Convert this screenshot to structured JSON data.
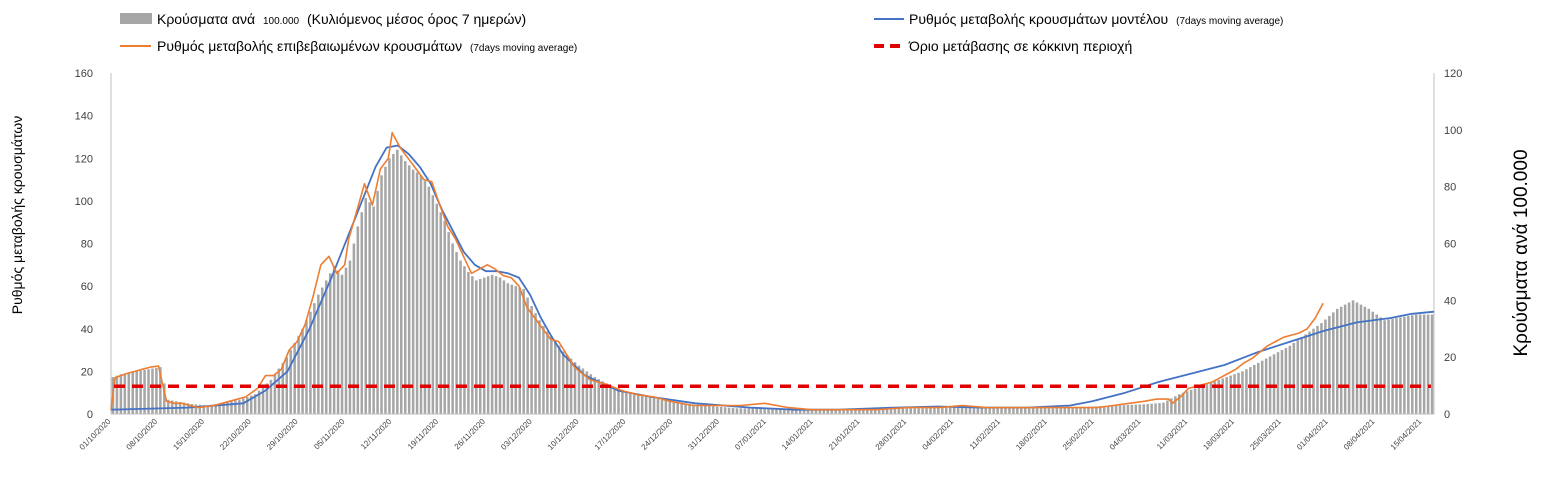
{
  "chart_data": {
    "type": "bar+line",
    "legend": {
      "placement": "top",
      "items": [
        {
          "key": "bars",
          "label_main": "Κρούσματα ανά",
          "label_small": "100.000",
          "label_rest": "(Κυλιόμενος μέσος όρος 7 ημερών)"
        },
        {
          "key": "model",
          "label_main": "Ρυθμός μεταβολής κρουσμάτων μοντέλου",
          "label_small": "(7days moving average)"
        },
        {
          "key": "confirmed",
          "label_main": "Ρυθμός μεταβολής επιβεβαιωμένων κρουσμάτων",
          "label_small": "(7days moving average)"
        },
        {
          "key": "threshold",
          "label_main": "Όριο μετάβασης σε κόκκινη περιοχή"
        }
      ]
    },
    "y_left_label": "Ρυθμός μεταβολής κρουσμάτων",
    "y_right_label": "Κρούσματα ανά 100.000",
    "y_left_range": [
      0,
      160
    ],
    "y_right_range": [
      0,
      120
    ],
    "y_left_ticks": [
      "0",
      "20",
      "40",
      "60",
      "80",
      "100",
      "120",
      "140",
      "160"
    ],
    "y_right_ticks": [
      "0",
      "20",
      "40",
      "60",
      "80",
      "100",
      "120"
    ],
    "x_ticks": [
      "01/10/2020",
      "08/10/2020",
      "15/10/2020",
      "22/10/2020",
      "29/10/2020",
      "05/11/2020",
      "12/11/2020",
      "19/11/2020",
      "26/11/2020",
      "03/12/2020",
      "10/12/2020",
      "17/12/2020",
      "24/12/2020",
      "31/12/2020",
      "07/01/2021",
      "14/01/2021",
      "21/01/2021",
      "28/01/2021",
      "04/02/2021",
      "11/02/2021",
      "18/02/2021",
      "25/02/2021",
      "04/03/2021",
      "11/03/2021",
      "18/03/2021",
      "25/03/2021",
      "01/04/2021",
      "08/04/2021",
      "15/04/2021"
    ],
    "grid": false,
    "threshold_left_value": 13,
    "colors": {
      "bars": "#a6a6a6",
      "model": "#4472c4",
      "confirmed": "#ed7d31",
      "threshold": "#e00000",
      "axis": "#bfbfbf",
      "text": "#000000",
      "tick_text": "#404040"
    },
    "model_anchors": [
      [
        0,
        2
      ],
      [
        14,
        3
      ],
      [
        24,
        5
      ],
      [
        28,
        11
      ],
      [
        32,
        20
      ],
      [
        36,
        40
      ],
      [
        40,
        64
      ],
      [
        44,
        90
      ],
      [
        48,
        116
      ],
      [
        50,
        125
      ],
      [
        52,
        126
      ],
      [
        54,
        122
      ],
      [
        56,
        116
      ],
      [
        58,
        108
      ],
      [
        60,
        96
      ],
      [
        62,
        86
      ],
      [
        64,
        76
      ],
      [
        66,
        70
      ],
      [
        68,
        67
      ],
      [
        70,
        67
      ],
      [
        72,
        66
      ],
      [
        74,
        64
      ],
      [
        76,
        56
      ],
      [
        78,
        45
      ],
      [
        80,
        36
      ],
      [
        82,
        28
      ],
      [
        86,
        18
      ],
      [
        92,
        11
      ],
      [
        98,
        8
      ],
      [
        106,
        5
      ],
      [
        116,
        3
      ],
      [
        124,
        2
      ],
      [
        132,
        2
      ],
      [
        142,
        3
      ],
      [
        150,
        3.5
      ],
      [
        158,
        3
      ],
      [
        166,
        3
      ],
      [
        174,
        4
      ],
      [
        178,
        6
      ],
      [
        184,
        10
      ],
      [
        190,
        15
      ],
      [
        196,
        19
      ],
      [
        202,
        23
      ],
      [
        208,
        29
      ],
      [
        214,
        34
      ],
      [
        220,
        39
      ],
      [
        226,
        43
      ],
      [
        232,
        45
      ],
      [
        236,
        47
      ],
      [
        240,
        48
      ]
    ],
    "confirmed_anchors": [
      [
        0,
        2
      ],
      [
        1,
        17
      ],
      [
        4,
        19
      ],
      [
        6,
        20
      ],
      [
        8,
        21
      ],
      [
        10,
        22
      ],
      [
        12,
        22.5
      ],
      [
        14,
        6
      ],
      [
        16,
        5
      ],
      [
        18,
        5
      ],
      [
        22,
        3
      ],
      [
        26,
        4
      ],
      [
        30,
        6
      ],
      [
        34,
        8
      ],
      [
        37,
        12
      ],
      [
        39,
        18
      ],
      [
        41,
        18
      ],
      [
        43,
        21
      ],
      [
        45,
        30
      ],
      [
        47,
        34
      ],
      [
        49,
        42
      ],
      [
        51,
        55
      ],
      [
        53,
        70
      ],
      [
        55,
        74
      ],
      [
        57,
        66
      ],
      [
        59,
        70
      ],
      [
        60,
        82
      ],
      [
        62,
        95
      ],
      [
        64,
        108
      ],
      [
        66,
        98
      ],
      [
        68,
        115
      ],
      [
        70,
        120
      ],
      [
        71,
        132
      ],
      [
        73,
        125
      ],
      [
        75,
        120
      ],
      [
        77,
        115
      ],
      [
        79,
        110
      ],
      [
        81,
        109
      ],
      [
        83,
        98
      ],
      [
        85,
        88
      ],
      [
        87,
        82
      ],
      [
        89,
        74
      ],
      [
        91,
        66
      ],
      [
        93,
        68
      ],
      [
        95,
        70
      ],
      [
        97,
        68
      ],
      [
        99,
        65
      ],
      [
        101,
        64
      ],
      [
        103,
        60
      ],
      [
        105,
        50
      ],
      [
        107,
        45
      ],
      [
        109,
        40
      ],
      [
        111,
        35
      ],
      [
        113,
        34
      ],
      [
        115,
        28
      ],
      [
        117,
        22
      ],
      [
        121,
        16
      ],
      [
        125,
        14
      ],
      [
        129,
        11
      ],
      [
        133,
        9
      ],
      [
        137,
        8
      ],
      [
        141,
        6
      ],
      [
        147,
        4
      ],
      [
        153,
        4
      ],
      [
        159,
        4
      ],
      [
        165,
        5
      ],
      [
        171,
        3
      ],
      [
        177,
        2
      ],
      [
        185,
        2
      ],
      [
        193,
        2
      ],
      [
        201,
        3
      ],
      [
        209,
        3
      ],
      [
        215,
        4
      ],
      [
        221,
        3
      ],
      [
        227,
        3
      ],
      [
        235,
        3
      ],
      [
        243,
        3
      ],
      [
        249,
        3
      ],
      [
        253,
        4
      ],
      [
        257,
        5
      ],
      [
        261,
        6
      ],
      [
        264,
        7
      ],
      [
        267,
        7
      ],
      [
        268,
        5
      ],
      [
        270,
        8
      ],
      [
        272,
        12
      ],
      [
        274,
        13
      ],
      [
        276,
        14
      ],
      [
        278,
        15
      ],
      [
        280,
        17
      ],
      [
        282,
        19
      ],
      [
        284,
        21
      ],
      [
        286,
        24
      ],
      [
        288,
        26
      ],
      [
        290,
        29
      ],
      [
        292,
        32
      ],
      [
        294,
        34
      ],
      [
        296,
        36
      ],
      [
        298,
        37
      ],
      [
        300,
        38
      ],
      [
        302,
        40
      ],
      [
        304,
        45
      ],
      [
        306,
        52
      ]
    ],
    "bar_anchors": [
      [
        0,
        13
      ],
      [
        2,
        14
      ],
      [
        4,
        14.5
      ],
      [
        6,
        15
      ],
      [
        8,
        15.5
      ],
      [
        10,
        16
      ],
      [
        12,
        16.5
      ],
      [
        14,
        5
      ],
      [
        16,
        4.5
      ],
      [
        20,
        3.5
      ],
      [
        24,
        3
      ],
      [
        28,
        4
      ],
      [
        32,
        5
      ],
      [
        36,
        7
      ],
      [
        40,
        12
      ],
      [
        44,
        20
      ],
      [
        48,
        30
      ],
      [
        52,
        42
      ],
      [
        56,
        52
      ],
      [
        58,
        49
      ],
      [
        60,
        54
      ],
      [
        62,
        66
      ],
      [
        64,
        76
      ],
      [
        66,
        73
      ],
      [
        68,
        84
      ],
      [
        70,
        90
      ],
      [
        72,
        93
      ],
      [
        74,
        89
      ],
      [
        76,
        86
      ],
      [
        78,
        84
      ],
      [
        80,
        80
      ],
      [
        82,
        74
      ],
      [
        84,
        68
      ],
      [
        86,
        60
      ],
      [
        88,
        54
      ],
      [
        90,
        50
      ],
      [
        92,
        47
      ],
      [
        94,
        48
      ],
      [
        96,
        49
      ],
      [
        98,
        48
      ],
      [
        100,
        46
      ],
      [
        102,
        45
      ],
      [
        104,
        44
      ],
      [
        106,
        38
      ],
      [
        108,
        33
      ],
      [
        110,
        29
      ],
      [
        112,
        26
      ],
      [
        114,
        22
      ],
      [
        118,
        17
      ],
      [
        122,
        13
      ],
      [
        126,
        10
      ],
      [
        130,
        8
      ],
      [
        136,
        6
      ],
      [
        142,
        4
      ],
      [
        150,
        3
      ],
      [
        158,
        2
      ],
      [
        166,
        2
      ],
      [
        174,
        1.5
      ],
      [
        182,
        1.5
      ],
      [
        190,
        2
      ],
      [
        198,
        2
      ],
      [
        206,
        2
      ],
      [
        214,
        2.5
      ],
      [
        222,
        2.5
      ],
      [
        230,
        2.5
      ],
      [
        238,
        2
      ],
      [
        246,
        2.5
      ],
      [
        254,
        3
      ],
      [
        262,
        3.5
      ],
      [
        266,
        4
      ],
      [
        270,
        7
      ],
      [
        274,
        9
      ],
      [
        278,
        11
      ],
      [
        282,
        13
      ],
      [
        286,
        15
      ],
      [
        290,
        18
      ],
      [
        294,
        21
      ],
      [
        298,
        24
      ],
      [
        302,
        28
      ],
      [
        306,
        32
      ],
      [
        310,
        37
      ],
      [
        314,
        40
      ],
      [
        318,
        37
      ],
      [
        322,
        33
      ],
      [
        326,
        34
      ],
      [
        330,
        35
      ],
      [
        334,
        35
      ]
    ],
    "n_bars": 335,
    "last_day_index": 197
  }
}
